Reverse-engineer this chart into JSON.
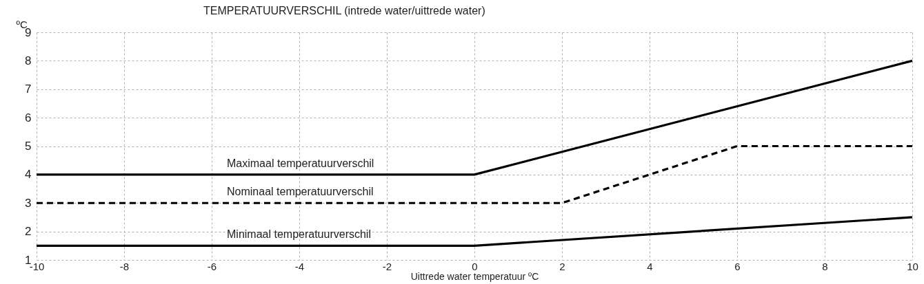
{
  "chart_data": {
    "type": "line",
    "title": "TEMPERATUURVERSCHIL (intrede water/uittrede water)",
    "xlabel": "Uittrede water temperatuur ºC",
    "ylabel": "ºC",
    "xlim": [
      -10,
      10
    ],
    "xticks": [
      -10,
      -8,
      -6,
      -4,
      -2,
      0,
      2,
      4,
      6,
      8,
      10
    ],
    "ylim": [
      1,
      9
    ],
    "yticks": [
      1,
      2,
      3,
      4,
      5,
      6,
      7,
      8,
      9
    ],
    "grid": true,
    "series": [
      {
        "name": "Maximaal temperatuurverschil",
        "color": "#000000",
        "line_style": "solid",
        "x": [
          -10,
          0,
          10
        ],
        "values": [
          4,
          4,
          8
        ]
      },
      {
        "name": "Nominaal temperatuurverschil",
        "color": "#000000",
        "line_style": "dashed",
        "x": [
          -10,
          2,
          6,
          10
        ],
        "values": [
          3,
          3,
          5,
          5
        ]
      },
      {
        "name": "Minimaal temperatuurverschil",
        "color": "#000000",
        "line_style": "solid",
        "x": [
          -10,
          0,
          10
        ],
        "values": [
          1.5,
          1.5,
          2.5
        ]
      }
    ]
  }
}
